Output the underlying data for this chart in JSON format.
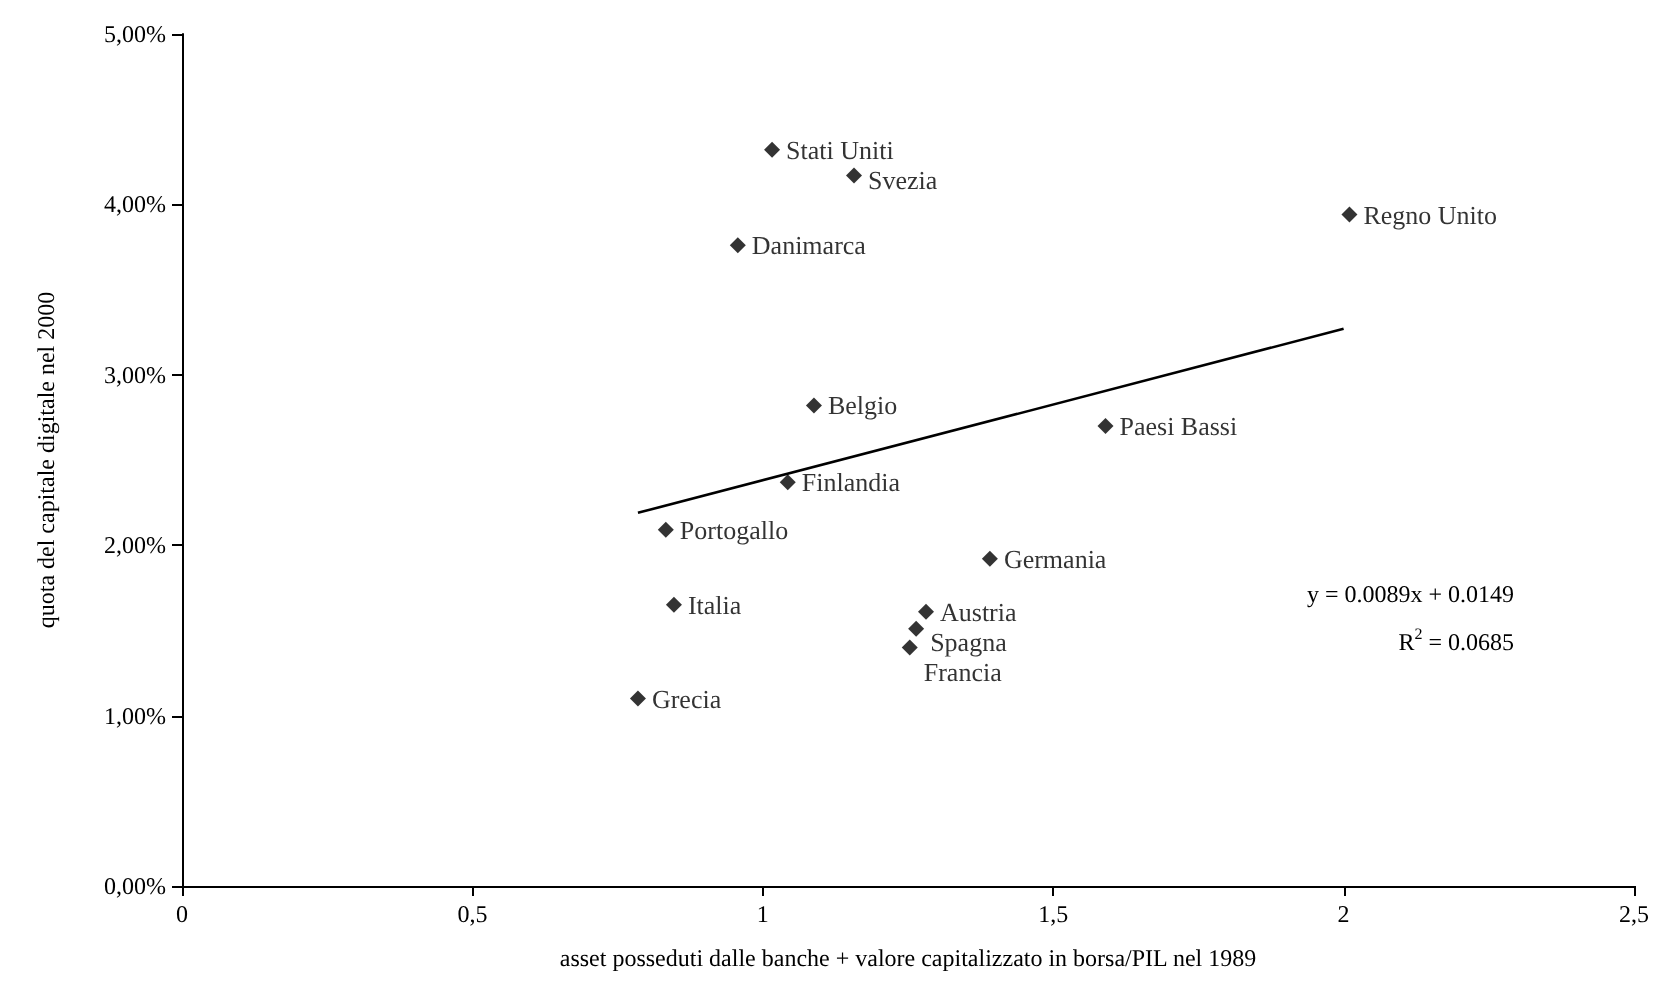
{
  "chart_data": {
    "type": "scatter",
    "xlabel": "asset posseduti dalle banche + valore capitalizzato in borsa/PIL nel 1989",
    "ylabel": "quota del capitale digitale nel 2000",
    "marker": "diamond",
    "grid": false,
    "legend": false,
    "xlim": [
      0,
      2.5
    ],
    "xticks": [
      0,
      {
        "value": 0.5,
        "label": "0,5"
      },
      1,
      {
        "value": 1.5,
        "label": "1,5"
      },
      2,
      {
        "value": 2.5,
        "label": "2,5"
      }
    ],
    "ylim": [
      0,
      5
    ],
    "yticks": [
      {
        "value": 0,
        "label": "0,00%"
      },
      {
        "value": 1,
        "label": "1,00%"
      },
      {
        "value": 2,
        "label": "2,00%"
      },
      {
        "value": 3,
        "label": "3,00%"
      },
      {
        "value": 4,
        "label": "4,00%"
      },
      {
        "value": 5,
        "label": "5,00%"
      }
    ],
    "annotations": [
      "y = 0.0089x + 0.0149",
      "R$^{2}$ = 0.0685"
    ],
    "series": [
      {
        "name": "Stati Uniti",
        "color": "#000000",
        "x": [
          1.016
        ],
        "values": [
          4.32
        ]
      },
      {
        "name": "Svezia",
        "color": "#000000",
        "x": [
          1.157
        ],
        "values": [
          4.17
        ]
      },
      {
        "name": "Danimarca",
        "color": "#000000",
        "x": [
          0.957
        ],
        "values": [
          3.76
        ]
      },
      {
        "name": "Regno Unito",
        "color": "#000000",
        "x": [
          2.01
        ],
        "values": [
          3.94
        ]
      },
      {
        "name": "Belgio",
        "color": "#000000",
        "x": [
          1.088
        ],
        "values": [
          2.82
        ]
      },
      {
        "name": "Paesi Bassi",
        "color": "#000000",
        "x": [
          1.59
        ],
        "values": [
          2.7
        ]
      },
      {
        "name": "Finlandia",
        "color": "#000000",
        "x": [
          1.043
        ],
        "values": [
          2.37
        ]
      },
      {
        "name": "Portogallo",
        "color": "#000000",
        "x": [
          0.833
        ],
        "values": [
          2.09
        ]
      },
      {
        "name": "Germania",
        "color": "#000000",
        "x": [
          1.391
        ],
        "values": [
          1.92
        ]
      },
      {
        "name": "Italia",
        "color": "#000000",
        "x": [
          0.847
        ],
        "values": [
          1.65
        ]
      },
      {
        "name": "Austria",
        "color": "#000000",
        "x": [
          1.281
        ],
        "values": [
          1.61
        ]
      },
      {
        "name": "Spagna",
        "color": "#000000",
        "x": [
          1.264
        ],
        "values": [
          1.51
        ]
      },
      {
        "name": "Francia",
        "color": "#000000",
        "x": [
          1.253
        ],
        "values": [
          1.4
        ]
      },
      {
        "name": "Grecia",
        "color": "#000000",
        "x": [
          0.785
        ],
        "values": [
          1.1
        ]
      },
      {
        "type": "line",
        "color": "#000000",
        "x": [
          0.785,
          2.0
        ],
        "values": [
          2.19,
          3.27
        ],
        "marker": "none",
        "line_style": "solid"
      }
    ]
  }
}
